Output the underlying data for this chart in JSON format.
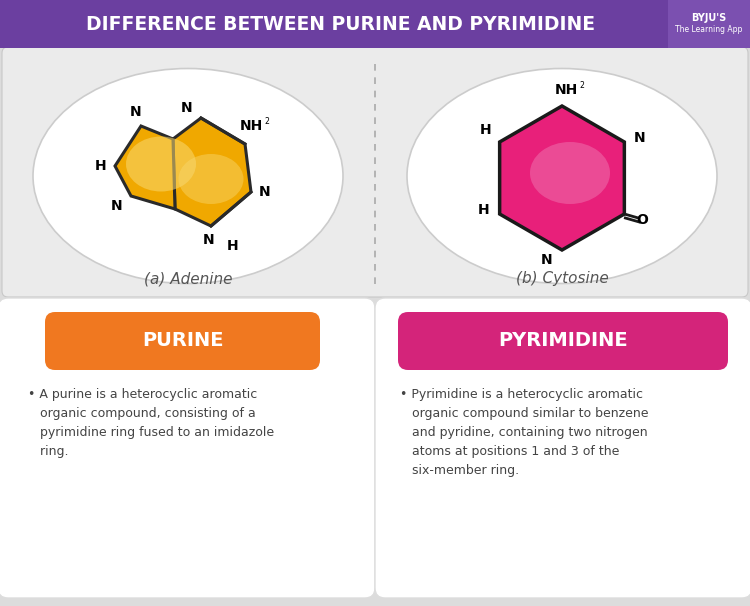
{
  "title": "DIFFERENCE BETWEEN PURINE AND PYRIMIDINE",
  "title_bg": "#6b3fa0",
  "title_color": "#ffffff",
  "bg_color": "#dcdcdc",
  "adenine_label": "(a) Adenine",
  "cytosine_label": "(b) Cytosine",
  "purine_label": "PURINE",
  "pyrimidine_label": "PYRIMIDINE",
  "purine_color": "#f07820",
  "pyrimidine_color": "#d4247a",
  "purine_text": "A purine is a heterocyclic aromatic\norganic compound, consisting of a\npyrimidine ring fused to an imidazole\nring.",
  "pyrimidine_text": "Pyrimidine is a heterocyclic aromatic\norganic compound similar to benzene\nand pyridine, containing two nitrogen\natoms at positions 1 and 3 of the\nsix-member ring.",
  "adenine_fill": "#f0a800",
  "adenine_glow": "#f8d870",
  "cytosine_fill": "#e8207a",
  "cytosine_glow": "#f070b0",
  "oval_fill": "#ffffff",
  "oval_edge": "#cccccc",
  "panel_fill": "#ebebeb",
  "box_fill": "#ffffff",
  "box_edge": "#dddddd",
  "label_color": "#555555",
  "text_color": "#444444",
  "byju_bg": "#7b50b0"
}
